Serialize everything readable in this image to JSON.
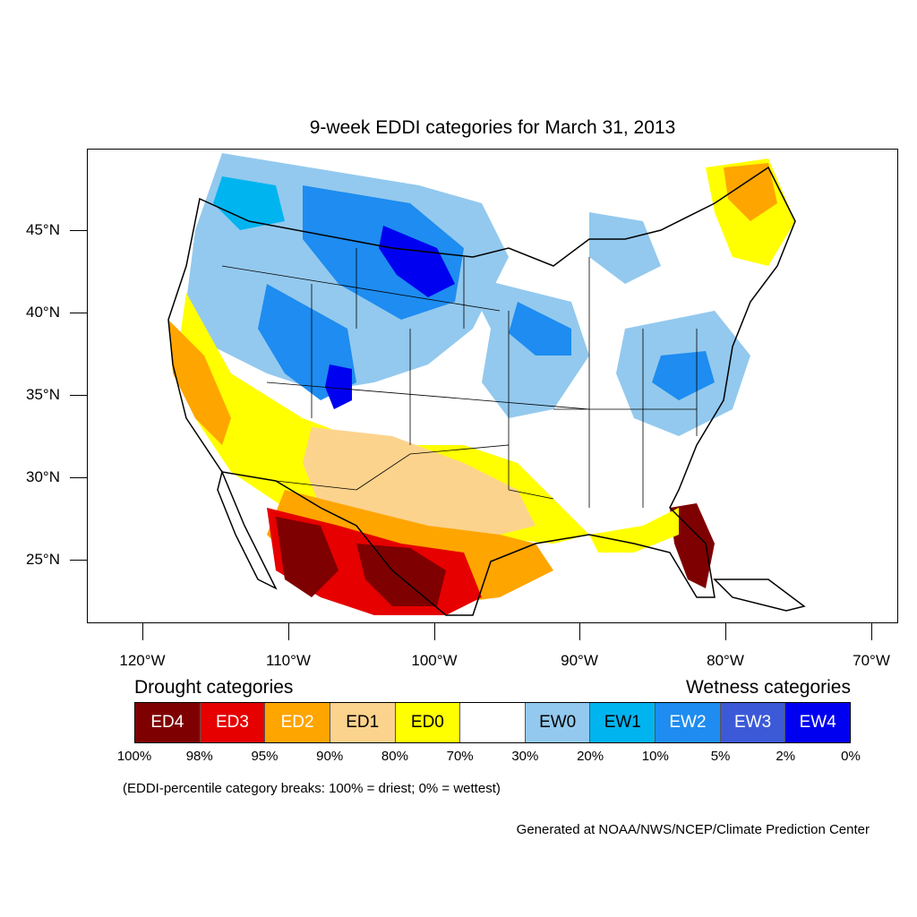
{
  "title": "9-week EDDI categories for March 31, 2013",
  "lat_labels": [
    "45°N",
    "40°N",
    "35°N",
    "30°N",
    "25°N"
  ],
  "lon_labels": [
    "120°W",
    "110°W",
    "100°W",
    "90°W",
    "80°W",
    "70°W"
  ],
  "legend": {
    "drought_heading": "Drought categories",
    "wetness_heading": "Wetness categories",
    "categories": [
      {
        "label": "ED4",
        "color": "#7f0000",
        "text_color": "#ffffff"
      },
      {
        "label": "ED3",
        "color": "#e60000",
        "text_color": "#ffffff"
      },
      {
        "label": "ED2",
        "color": "#ffa500",
        "text_color": "#ffffff"
      },
      {
        "label": "ED1",
        "color": "#fcd38d",
        "text_color": "#000000"
      },
      {
        "label": "ED0",
        "color": "#ffff00",
        "text_color": "#000000"
      },
      {
        "label": "",
        "color": "#ffffff",
        "text_color": "#000000"
      },
      {
        "label": "EW0",
        "color": "#93c9ee",
        "text_color": "#000000"
      },
      {
        "label": "EW1",
        "color": "#00b4f0",
        "text_color": "#000000"
      },
      {
        "label": "EW2",
        "color": "#1e8cf0",
        "text_color": "#ffffff"
      },
      {
        "label": "EW3",
        "color": "#3c5ad8",
        "text_color": "#ffffff"
      },
      {
        "label": "EW4",
        "color": "#0000f0",
        "text_color": "#ffffff"
      }
    ],
    "breaks": [
      "100%",
      "98%",
      "95%",
      "90%",
      "80%",
      "70%",
      "30%",
      "20%",
      "10%",
      "5%",
      "2%",
      "0%"
    ]
  },
  "note": "(EDDI-percentile category breaks: 100% = driest; 0% = wettest)",
  "credit": "Generated at NOAA/NWS/NCEP/Climate Prediction Center"
}
